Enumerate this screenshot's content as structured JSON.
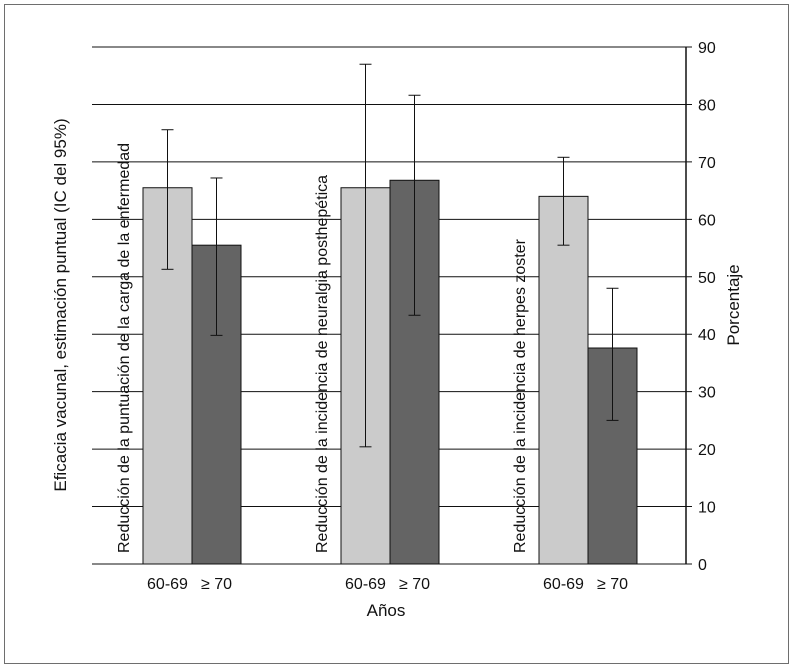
{
  "chart_data": {
    "type": "bar",
    "groups": [
      {
        "label": "Reducción de la puntuación de la carga de la enfermedad",
        "categories": [
          "60-69",
          "≥ 70"
        ],
        "values": [
          65.5,
          55.5
        ],
        "ci": [
          [
            51.3,
            75.6
          ],
          [
            39.8,
            67.2
          ]
        ]
      },
      {
        "label": "Reducción de la incidencia de neuralgia posthepética",
        "categories": [
          "60-69",
          "≥ 70"
        ],
        "values": [
          65.5,
          66.8
        ],
        "ci": [
          [
            20.4,
            87.0
          ],
          [
            43.3,
            81.6
          ]
        ]
      },
      {
        "label": "Reducción de la incidencia de herpes zoster",
        "categories": [
          "60-69",
          "≥ 70"
        ],
        "values": [
          64.0,
          37.6
        ],
        "ci": [
          [
            55.5,
            70.8
          ],
          [
            25.0,
            48.0
          ]
        ]
      }
    ],
    "series_colors": [
      "#cbcbcb",
      "#646464"
    ],
    "ylabel_left": "Eficacia vacunal, estimación puntual (IC del 95%)",
    "ylabel_right": "Porcentaje",
    "xlabel": "Años",
    "ylim": [
      0,
      90
    ],
    "yticks": [
      0,
      10,
      20,
      30,
      40,
      50,
      60,
      70,
      80,
      90
    ],
    "grid": true
  }
}
